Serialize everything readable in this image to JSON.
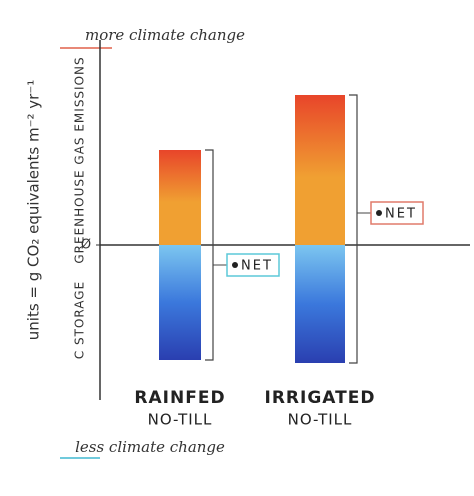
{
  "chart_data": {
    "type": "bar",
    "title": "more climate change",
    "bottom_note": "less climate change",
    "y_label": "units = g CO₂ equivalents m⁻² yr⁻¹",
    "categories": [
      "RAINFED",
      "IRRIGATED"
    ],
    "category_notes": [
      "NO-TILL",
      "NO-TILL"
    ],
    "series": [
      {
        "name": "GREENHOUSE GAS EMISSIONS",
        "color": "#f0a032",
        "values": [
          95,
          150
        ]
      },
      {
        "name": "C STORAGE",
        "color": "#3b78dc",
        "values": [
          -115,
          -118
        ]
      }
    ],
    "net": {
      "label": "NET",
      "values": [
        -20,
        32
      ],
      "colors": [
        "#5cc8d8",
        "#e07a6a"
      ]
    },
    "ylim": [
      -150,
      205
    ],
    "yticks": [
      {
        "value": 0,
        "label": "Ø"
      }
    ]
  }
}
